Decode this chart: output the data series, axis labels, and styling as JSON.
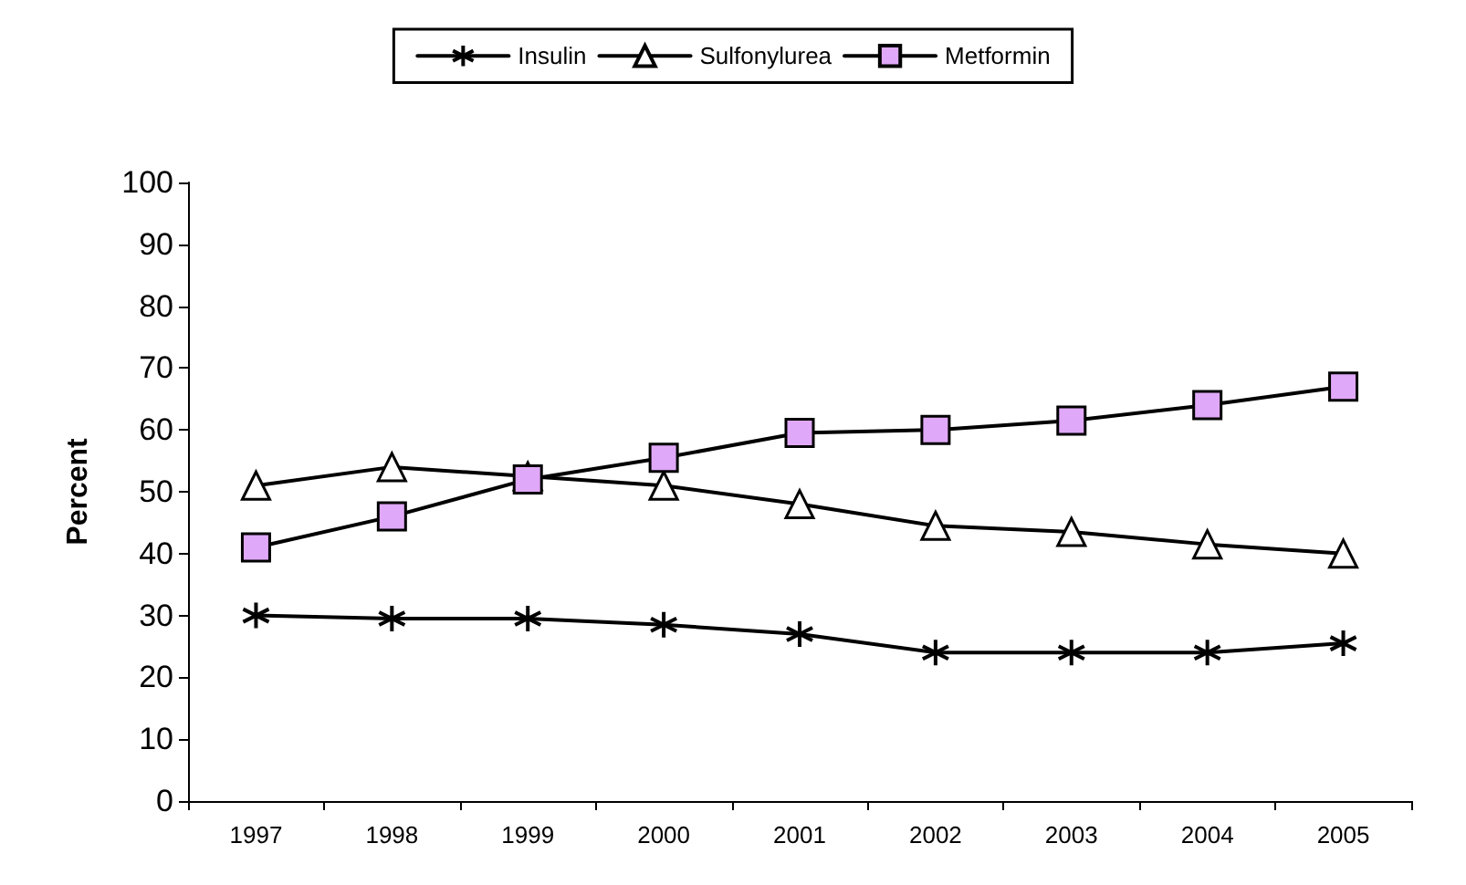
{
  "chart_data": {
    "type": "line",
    "ylabel": "Percent",
    "categories": [
      "1997",
      "1998",
      "1999",
      "2000",
      "2001",
      "2002",
      "2003",
      "2004",
      "2005"
    ],
    "series": [
      {
        "name": "Insulin",
        "color": "#000000",
        "marker": "cross",
        "values": [
          30,
          29.5,
          29.5,
          28.5,
          27,
          24,
          24,
          24,
          25.5
        ]
      },
      {
        "name": "Sulfonylurea",
        "color": "#000000",
        "marker": "triangle",
        "values": [
          51,
          54,
          52.5,
          51,
          48,
          44.5,
          43.5,
          41.5,
          40
        ]
      },
      {
        "name": "Metformin",
        "color": "#e0a8f8",
        "marker": "square",
        "values": [
          41,
          46,
          52,
          55.5,
          59.5,
          60,
          61.5,
          64,
          67
        ]
      }
    ],
    "ylim": [
      0,
      100
    ],
    "yticks": [
      0,
      10,
      20,
      30,
      40,
      50,
      60,
      70,
      80,
      90,
      100
    ],
    "grid": false,
    "legend": "top",
    "line_style": "solid"
  }
}
